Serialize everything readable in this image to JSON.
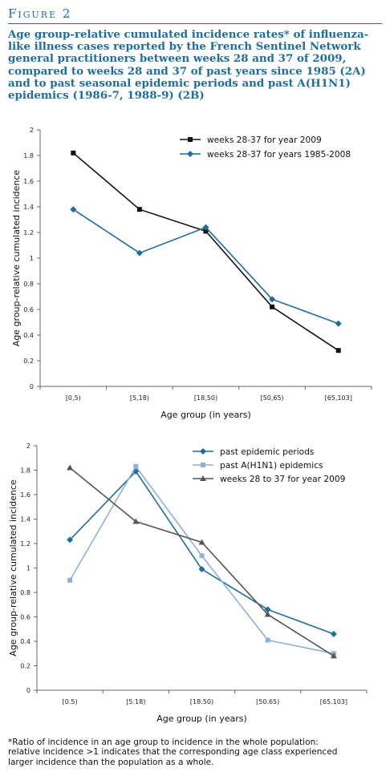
{
  "figure": {
    "label": "Figure 2",
    "title": "Age group-relative cumulated incidence rates* of influenza-like illness cases reported by the French Sentinel Network general practitioners between weeks 28 and 37 of 2009, compared to weeks 28 and 37 of past years since 1985 (2A) and to past seasonal epidemic periods and past A(H1N1) epidemics (1986-7, 1988-9) (2B)",
    "footnote": "*Ratio of incidence in an age group to incidence in the whole population: relative incidence >1 indicates that the corresponding age class experienced larger incidence than the population as a whole."
  },
  "chart_data": [
    {
      "type": "line",
      "categories": [
        "[0,5)",
        "[5,18)",
        "[18,50)",
        "[50,65)",
        "[65,103]"
      ],
      "xlabel": "Age group (in years)",
      "ylabel": "Age group-relative cumulated incidence",
      "ylim": [
        0,
        2
      ],
      "yticks": [
        "0",
        "0.2",
        "0.4",
        "0.6",
        "0.8",
        "1",
        "1.2",
        "1.4",
        "1.6",
        "1.8",
        "2"
      ],
      "grid": false,
      "legend_position": "top-right",
      "series": [
        {
          "name": "weeks 28-37 for year 2009",
          "values": [
            1.82,
            1.38,
            1.21,
            0.62,
            0.28
          ],
          "color": "#111111",
          "marker": "square"
        },
        {
          "name": "weeks 28-37 for years 1985-2008",
          "values": [
            1.38,
            1.04,
            1.24,
            0.68,
            0.49
          ],
          "color": "#1f6e97",
          "marker": "diamond"
        }
      ]
    },
    {
      "type": "line",
      "categories": [
        "[0.5)",
        "[5.18)",
        "[18.50)",
        "[50.65)",
        "[65.103]"
      ],
      "xlabel": "Age group (in years)",
      "ylabel": "Age group-relative cumulated incidence",
      "ylim": [
        0,
        2
      ],
      "yticks": [
        "0",
        "0.2",
        "0.4",
        "0.6",
        "0.8",
        "1",
        "1.2",
        "1.4",
        "1.6",
        "1.8",
        "2"
      ],
      "grid": false,
      "legend_position": "top-right",
      "series": [
        {
          "name": "past epidemic periods",
          "values": [
            1.23,
            1.79,
            0.99,
            0.66,
            0.46
          ],
          "color": "#1f6e97",
          "marker": "diamond"
        },
        {
          "name": "past A(H1N1) epidemics",
          "values": [
            0.9,
            1.83,
            1.1,
            0.41,
            0.3
          ],
          "color": "#8fb0d0",
          "marker": "square"
        },
        {
          "name": "weeks 28 to 37 for year 2009",
          "values": [
            1.82,
            1.38,
            1.21,
            0.62,
            0.28
          ],
          "color": "#555555",
          "marker": "triangle"
        }
      ]
    }
  ]
}
